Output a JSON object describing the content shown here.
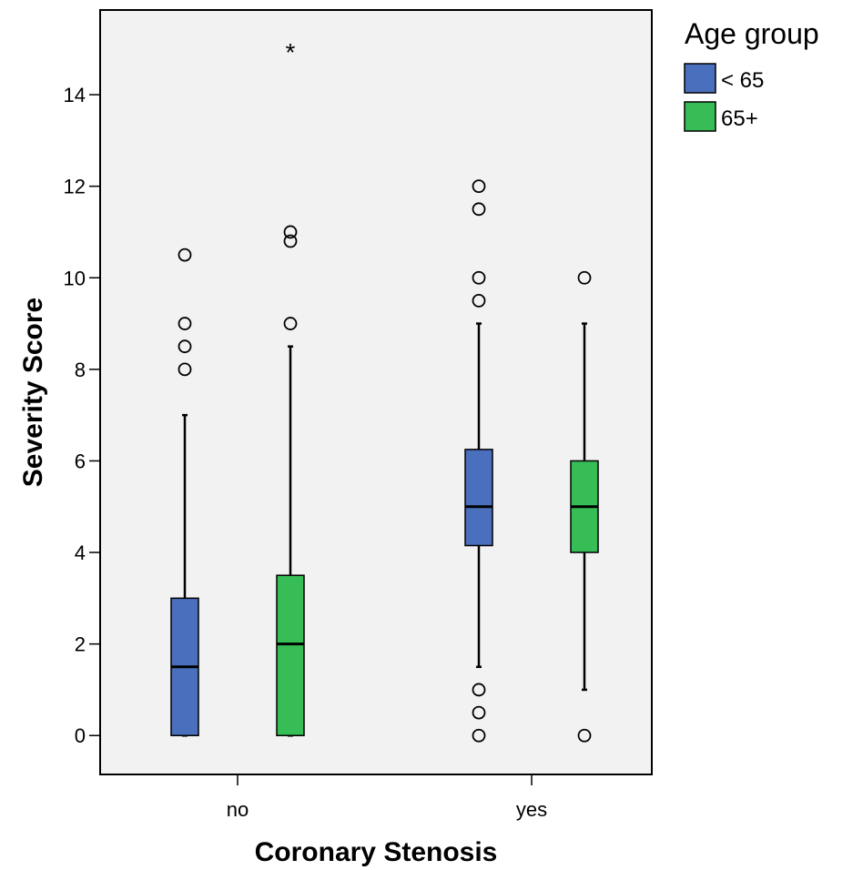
{
  "chart_data": {
    "type": "boxplot",
    "xlabel": "Coronary Stenosis",
    "ylabel": "Severity Score",
    "ylim": [
      -0.85,
      15.85
    ],
    "yticks": [
      0,
      2,
      4,
      6,
      8,
      10,
      12,
      14
    ],
    "categories": [
      "no",
      "yes"
    ],
    "legend": {
      "title": "Age group",
      "position": "top-right outside"
    },
    "grid": false,
    "series": [
      {
        "name": "< 65",
        "color": "#4a6fbd",
        "boxes": [
          {
            "category": "no",
            "whisker_low": 0,
            "q1": 0,
            "median": 1.5,
            "q3": 3,
            "whisker_high": 7,
            "outliers": [
              8,
              8.5,
              9,
              10.5
            ],
            "extremes": []
          },
          {
            "category": "yes",
            "whisker_low": 1.5,
            "q1": 4.15,
            "median": 5,
            "q3": 6.25,
            "whisker_high": 9,
            "outliers": [
              0,
              0.5,
              1,
              9.5,
              10,
              11.5,
              12
            ],
            "extremes": []
          }
        ]
      },
      {
        "name": "65+",
        "color": "#36bd56",
        "boxes": [
          {
            "category": "no",
            "whisker_low": 0,
            "q1": 0,
            "median": 2,
            "q3": 3.5,
            "whisker_high": 8.5,
            "outliers": [
              9,
              10.8,
              11
            ],
            "extremes": [
              15
            ]
          },
          {
            "category": "yes",
            "whisker_low": 1,
            "q1": 4,
            "median": 5,
            "q3": 6,
            "whisker_high": 9,
            "outliers": [
              0,
              10
            ],
            "extremes": []
          }
        ]
      }
    ]
  }
}
